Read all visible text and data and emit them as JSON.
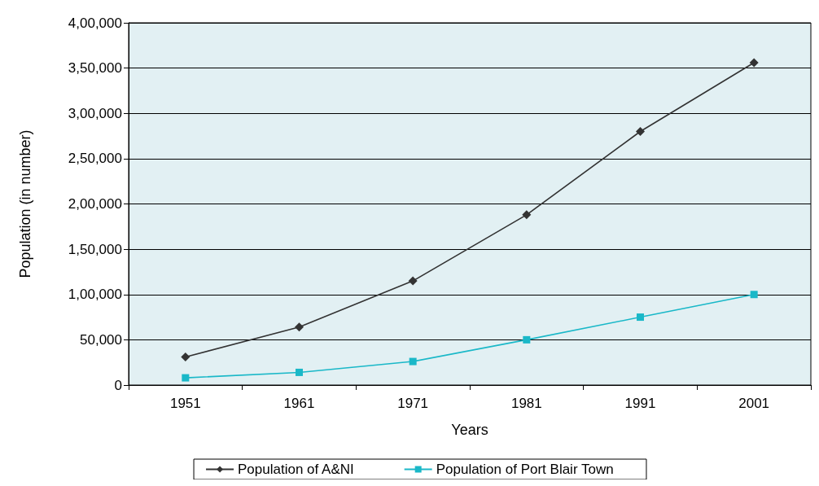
{
  "chart_data": {
    "type": "line",
    "xlabel": "Years",
    "ylabel": "Population (in number)",
    "categories": [
      "1951",
      "1961",
      "1971",
      "1981",
      "1991",
      "2001"
    ],
    "series": [
      {
        "name": "Population of A&NI",
        "color": "#333333",
        "marker": "diamond",
        "values": [
          31000,
          64000,
          115000,
          188000,
          280000,
          356000
        ]
      },
      {
        "name": "Population of Port Blair Town",
        "color": "#1ab8c8",
        "marker": "square",
        "values": [
          8000,
          14000,
          26000,
          50000,
          75000,
          100000
        ]
      }
    ],
    "ylim": [
      0,
      400000
    ],
    "yticks": [
      {
        "value": 0,
        "label": "0"
      },
      {
        "value": 50000,
        "label": "50,000"
      },
      {
        "value": 100000,
        "label": "1,00,000"
      },
      {
        "value": 150000,
        "label": "1,50,000"
      },
      {
        "value": 200000,
        "label": "2,00,000"
      },
      {
        "value": 250000,
        "label": "2,50,000"
      },
      {
        "value": 300000,
        "label": "3,00,000"
      },
      {
        "value": 350000,
        "label": "3,50,000"
      },
      {
        "value": 400000,
        "label": "4,00,000"
      }
    ],
    "grid": "y",
    "legend": "bottom",
    "line_style": "solid"
  }
}
